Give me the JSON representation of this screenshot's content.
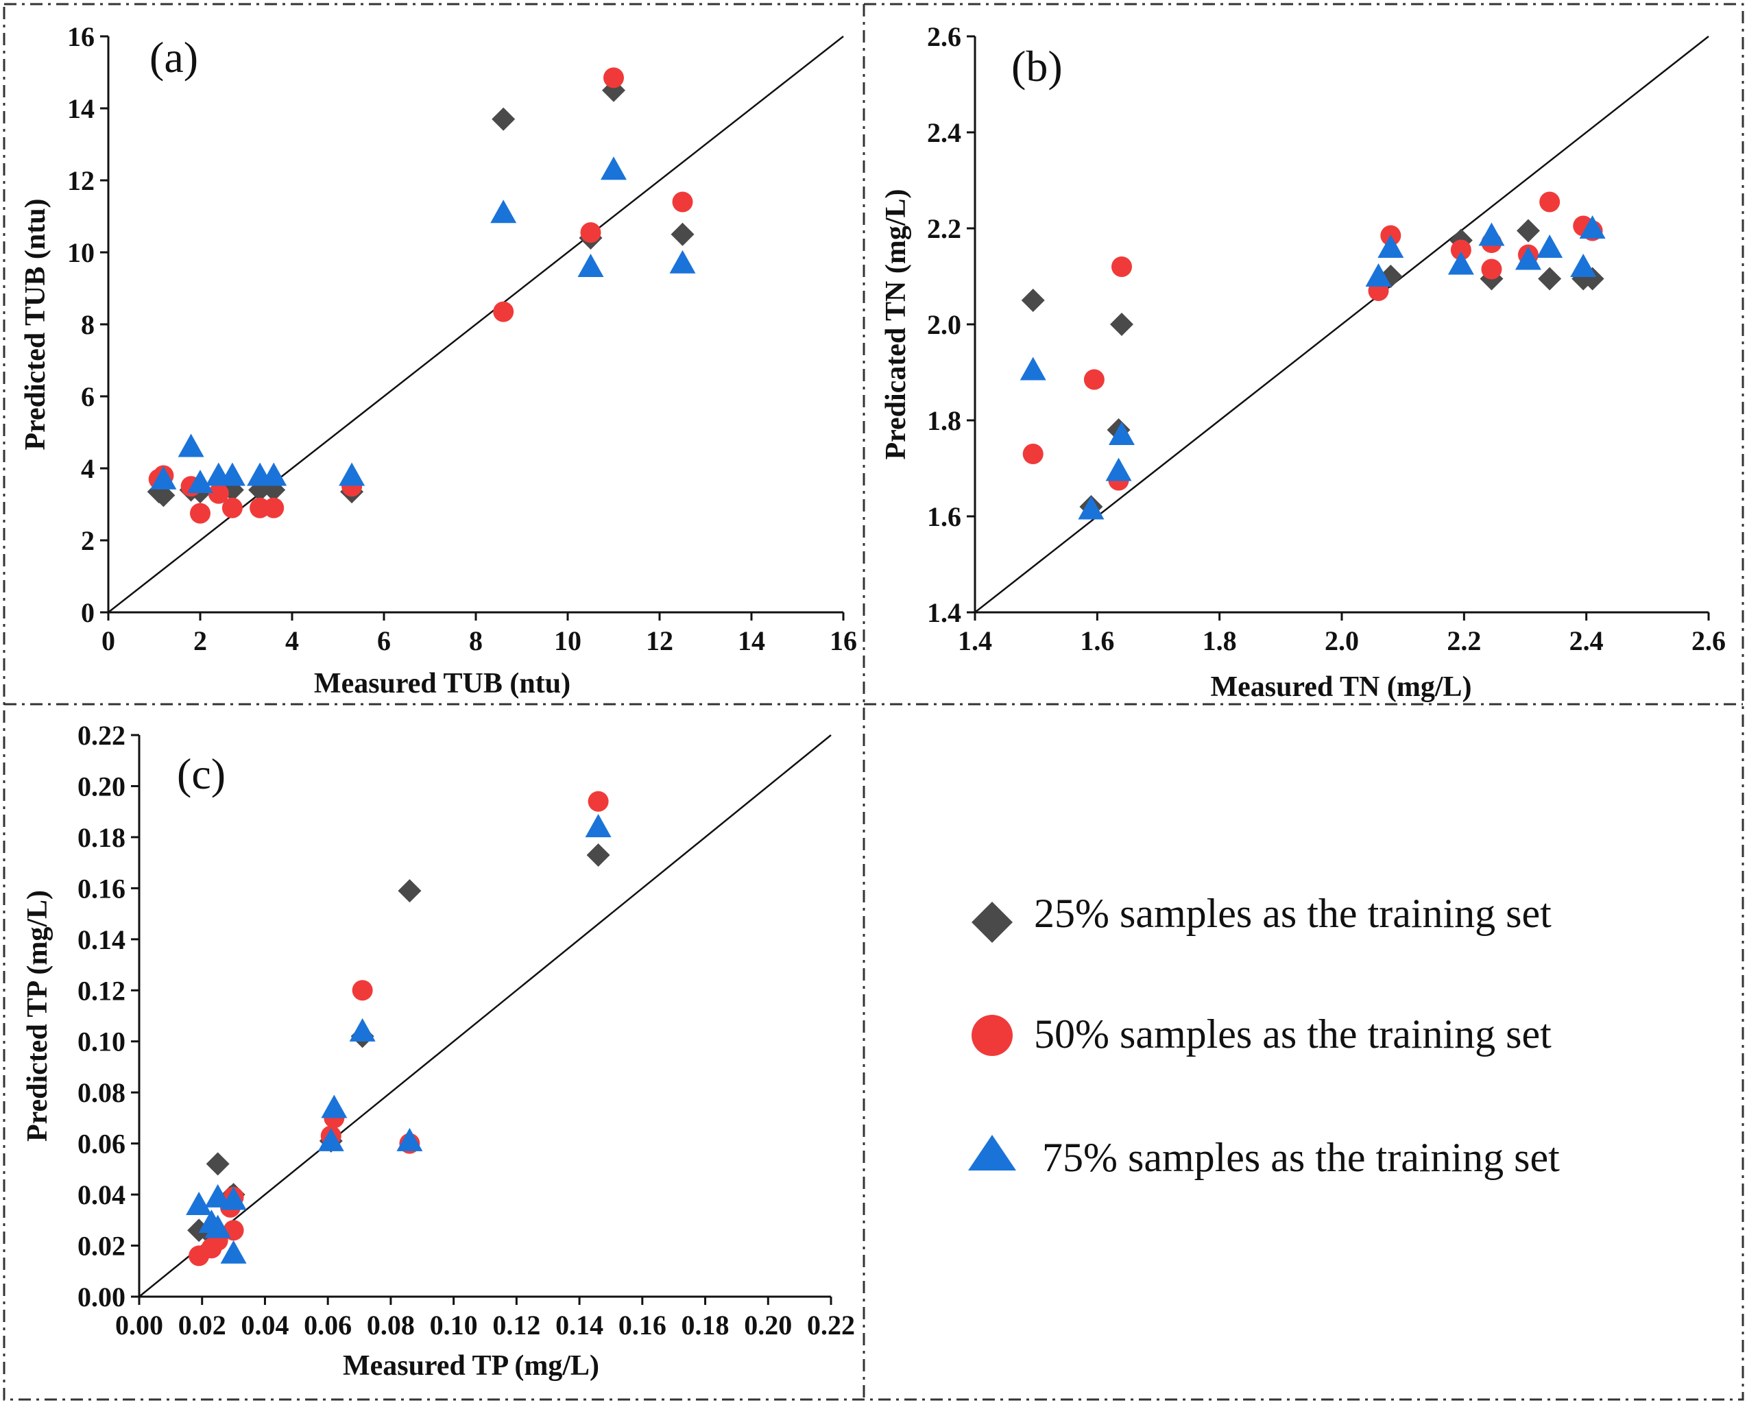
{
  "figure_title": "",
  "legend": {
    "items": [
      {
        "key": "s25",
        "label": "25% samples as the training set",
        "marker": "diamond",
        "color": "#4a4a4a"
      },
      {
        "key": "s50",
        "label": "50% samples as the training set",
        "marker": "circle",
        "color": "#f03a3a"
      },
      {
        "key": "s75",
        "label": "75% samples as the training set",
        "marker": "triangle",
        "color": "#1a73d9"
      }
    ]
  },
  "chart_data": [
    {
      "id": "a",
      "panel_label": "(a)",
      "type": "scatter",
      "xlabel": "Measured TUB (ntu)",
      "ylabel": "Predicted TUB (ntu)",
      "xlim": [
        0,
        16
      ],
      "ylim": [
        0,
        16
      ],
      "xticks": [
        0,
        2,
        4,
        6,
        8,
        10,
        12,
        14,
        16
      ],
      "yticks": [
        0,
        2,
        4,
        6,
        8,
        10,
        12,
        14,
        16
      ],
      "tick_decimals": 0,
      "reference_line": "y = x",
      "series": [
        {
          "name": "25% samples as the training set",
          "marker": "diamond",
          "color": "#4a4a4a",
          "points": [
            [
              1.1,
              3.35
            ],
            [
              1.2,
              3.25
            ],
            [
              1.8,
              3.4
            ],
            [
              2.0,
              3.35
            ],
            [
              2.7,
              3.4
            ],
            [
              3.3,
              3.4
            ],
            [
              3.6,
              3.4
            ],
            [
              5.3,
              3.35
            ],
            [
              8.6,
              13.7
            ],
            [
              10.5,
              10.4
            ],
            [
              11.0,
              14.5
            ],
            [
              12.5,
              10.5
            ]
          ]
        },
        {
          "name": "50% samples as the training set",
          "marker": "circle",
          "color": "#f03a3a",
          "points": [
            [
              1.1,
              3.7
            ],
            [
              1.2,
              3.8
            ],
            [
              1.8,
              3.5
            ],
            [
              2.0,
              2.75
            ],
            [
              2.4,
              3.3
            ],
            [
              2.7,
              2.9
            ],
            [
              3.3,
              2.9
            ],
            [
              3.6,
              2.9
            ],
            [
              5.3,
              3.5
            ],
            [
              8.6,
              8.35
            ],
            [
              10.5,
              10.55
            ],
            [
              11.0,
              14.85
            ],
            [
              12.5,
              11.4
            ]
          ]
        },
        {
          "name": "75% samples as the training set",
          "marker": "triangle",
          "color": "#1a73d9",
          "points": [
            [
              1.2,
              3.7
            ],
            [
              1.8,
              4.6
            ],
            [
              2.0,
              3.6
            ],
            [
              2.4,
              3.8
            ],
            [
              2.7,
              3.8
            ],
            [
              3.3,
              3.8
            ],
            [
              3.6,
              3.8
            ],
            [
              5.3,
              3.8
            ],
            [
              8.6,
              11.1
            ],
            [
              10.5,
              9.6
            ],
            [
              11.0,
              12.3
            ],
            [
              12.5,
              9.7
            ]
          ]
        }
      ]
    },
    {
      "id": "b",
      "panel_label": "(b)",
      "type": "scatter",
      "xlabel": "Measured TN (mg/L)",
      "ylabel": "Predicated TN (mg/L)",
      "xlim": [
        1.4,
        2.6
      ],
      "ylim": [
        1.4,
        2.6
      ],
      "xticks": [
        1.4,
        1.6,
        1.8,
        2.0,
        2.2,
        2.4,
        2.6
      ],
      "yticks": [
        1.4,
        1.6,
        1.8,
        2.0,
        2.2,
        2.4,
        2.6
      ],
      "tick_decimals": 1,
      "reference_line": "y = x",
      "series": [
        {
          "name": "25% samples as the training set",
          "marker": "diamond",
          "color": "#4a4a4a",
          "points": [
            [
              1.495,
              2.05
            ],
            [
              1.59,
              1.62
            ],
            [
              1.635,
              1.78
            ],
            [
              1.64,
              2.0
            ],
            [
              2.08,
              2.1
            ],
            [
              2.195,
              2.175
            ],
            [
              2.245,
              2.095
            ],
            [
              2.305,
              2.195
            ],
            [
              2.34,
              2.095
            ],
            [
              2.395,
              2.095
            ],
            [
              2.41,
              2.095
            ]
          ]
        },
        {
          "name": "50% samples as the training set",
          "marker": "circle",
          "color": "#f03a3a",
          "points": [
            [
              1.495,
              1.73
            ],
            [
              1.595,
              1.885
            ],
            [
              1.635,
              1.675
            ],
            [
              1.64,
              2.12
            ],
            [
              2.06,
              2.07
            ],
            [
              2.08,
              2.185
            ],
            [
              2.195,
              2.155
            ],
            [
              2.245,
              2.17
            ],
            [
              2.245,
              2.115
            ],
            [
              2.305,
              2.145
            ],
            [
              2.34,
              2.255
            ],
            [
              2.395,
              2.205
            ],
            [
              2.41,
              2.195
            ]
          ]
        },
        {
          "name": "75% samples as the training set",
          "marker": "triangle",
          "color": "#1a73d9",
          "points": [
            [
              1.495,
              1.905
            ],
            [
              1.59,
              1.615
            ],
            [
              1.635,
              1.695
            ],
            [
              1.64,
              1.77
            ],
            [
              2.06,
              2.1
            ],
            [
              2.08,
              2.16
            ],
            [
              2.195,
              2.125
            ],
            [
              2.245,
              2.185
            ],
            [
              2.305,
              2.135
            ],
            [
              2.34,
              2.16
            ],
            [
              2.395,
              2.12
            ],
            [
              2.41,
              2.2
            ]
          ]
        }
      ]
    },
    {
      "id": "c",
      "panel_label": "(c)",
      "type": "scatter",
      "xlabel": "Measured TP (mg/L)",
      "ylabel": "Predicted TP (mg/L)",
      "xlim": [
        0,
        0.22
      ],
      "ylim": [
        0,
        0.22
      ],
      "xticks": [
        0.0,
        0.02,
        0.04,
        0.06,
        0.08,
        0.1,
        0.12,
        0.14,
        0.16,
        0.18,
        0.2,
        0.22
      ],
      "yticks": [
        0.0,
        0.02,
        0.04,
        0.06,
        0.08,
        0.1,
        0.12,
        0.14,
        0.16,
        0.18,
        0.2,
        0.22
      ],
      "tick_decimals": 2,
      "reference_line": "y = x",
      "series": [
        {
          "name": "25% samples as the training set",
          "marker": "diamond",
          "color": "#4a4a4a",
          "points": [
            [
              0.019,
              0.026
            ],
            [
              0.023,
              0.024
            ],
            [
              0.025,
              0.052
            ],
            [
              0.029,
              0.039
            ],
            [
              0.03,
              0.04
            ],
            [
              0.061,
              0.061
            ],
            [
              0.071,
              0.102
            ],
            [
              0.086,
              0.159
            ],
            [
              0.146,
              0.173
            ]
          ]
        },
        {
          "name": "50% samples as the training set",
          "marker": "circle",
          "color": "#f03a3a",
          "points": [
            [
              0.019,
              0.016
            ],
            [
              0.023,
              0.019
            ],
            [
              0.025,
              0.022
            ],
            [
              0.029,
              0.035
            ],
            [
              0.03,
              0.026
            ],
            [
              0.03,
              0.039
            ],
            [
              0.061,
              0.063
            ],
            [
              0.062,
              0.07
            ],
            [
              0.071,
              0.12
            ],
            [
              0.086,
              0.06
            ],
            [
              0.146,
              0.194
            ]
          ]
        },
        {
          "name": "75% samples as the training set",
          "marker": "triangle",
          "color": "#1a73d9",
          "points": [
            [
              0.019,
              0.036
            ],
            [
              0.023,
              0.029
            ],
            [
              0.025,
              0.039
            ],
            [
              0.025,
              0.027
            ],
            [
              0.03,
              0.038
            ],
            [
              0.03,
              0.017
            ],
            [
              0.061,
              0.061
            ],
            [
              0.062,
              0.074
            ],
            [
              0.071,
              0.104
            ],
            [
              0.086,
              0.061
            ],
            [
              0.146,
              0.184
            ]
          ]
        }
      ]
    }
  ]
}
